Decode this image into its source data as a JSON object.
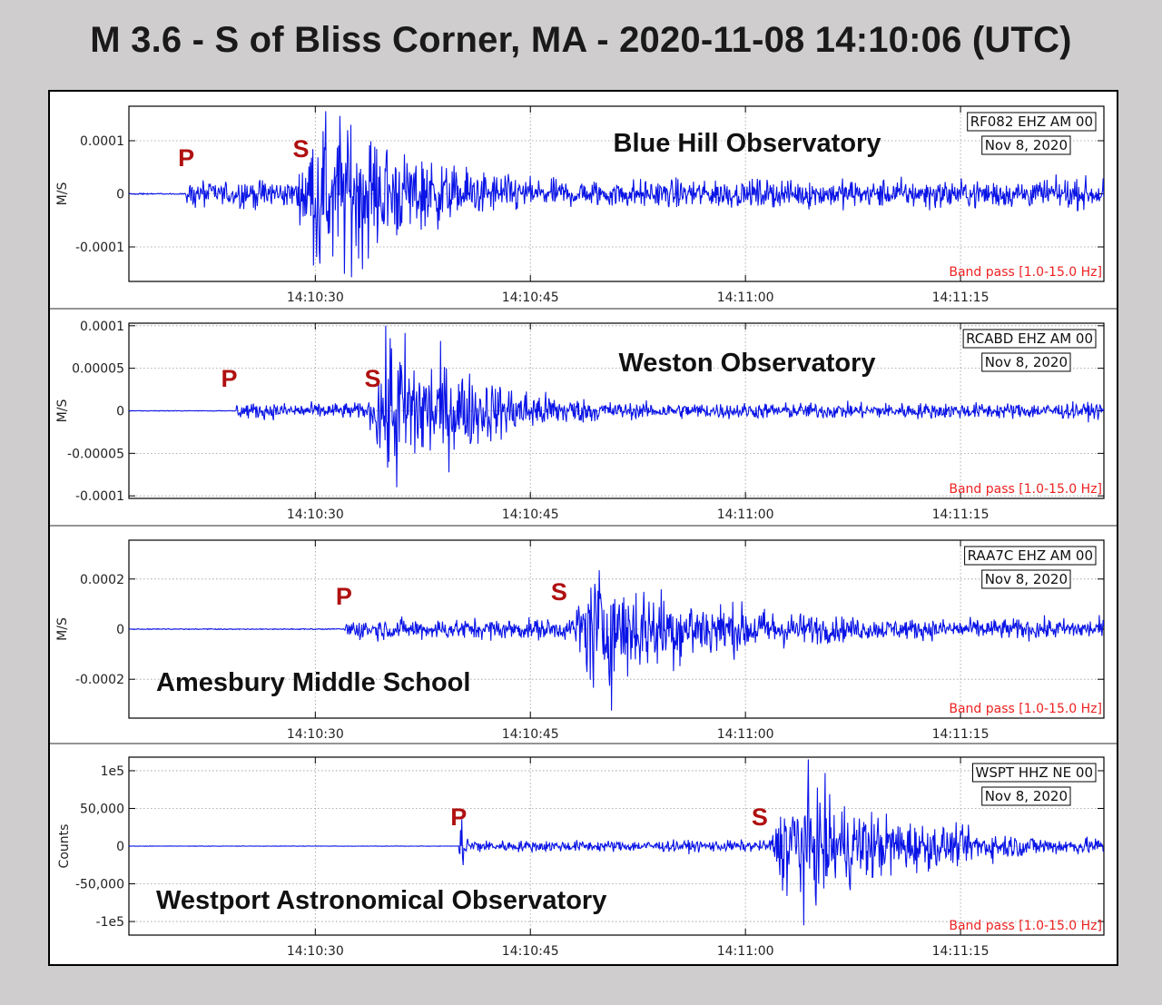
{
  "title": "M 3.6 - S of Bliss Corner, MA - 2020-11-08 14:10:06 (UTC)",
  "colors": {
    "trace": "#0a14e6",
    "phase_marker": "#b01010",
    "filter_text": "#ee2222",
    "grid": "#9a9a9a"
  },
  "chart_data": [
    {
      "type": "line",
      "station": "Blue Hill Observatory",
      "channel": "RF082 EHZ AM 00",
      "date": "Nov 8, 2020",
      "filter": "Band pass [1.0-15.0 Hz]",
      "ylabel": "M/S",
      "yticks": [
        0.0001,
        0,
        -0.0001
      ],
      "ytick_labels": [
        "0.0001",
        "0",
        "-0.0001"
      ],
      "ylim": [
        -0.000185,
        0.000165
      ],
      "xlim": [
        "14:10:17",
        "14:11:25"
      ],
      "xticks": [
        "14:10:30",
        "14:10:45",
        "14:11:00",
        "14:11:15"
      ],
      "phases": [
        {
          "label": "P",
          "time": "14:10:21"
        },
        {
          "label": "S",
          "time": "14:10:29"
        }
      ],
      "envelope": {
        "p_time": "14:10:21",
        "s_time": "14:10:30",
        "p_amp": 1.4e-05,
        "s_amp": 9.5e-05,
        "s_decay_s": 8,
        "coda_amp": 6e-06,
        "peak_max": 0.000118,
        "peak_min": -0.000135
      }
    },
    {
      "type": "line",
      "station": "Weston Observatory",
      "channel": "RCABD EHZ AM 00",
      "date": "Nov 8, 2020",
      "filter": "Band pass [1.0-15.0 Hz]",
      "ylabel": "M/S",
      "yticks": [
        0.0001,
        5e-05,
        0,
        -5e-05,
        -0.0001
      ],
      "ytick_labels": [
        "0.0001",
        "0.00005",
        "0",
        "-0.00005",
        "-0.0001"
      ],
      "ylim": [
        -0.000103,
        0.000103
      ],
      "xlim": [
        "14:10:17",
        "14:11:25"
      ],
      "xticks": [
        "14:10:30",
        "14:10:45",
        "14:11:00",
        "14:11:15"
      ],
      "phases": [
        {
          "label": "P",
          "time": "14:10:24"
        },
        {
          "label": "S",
          "time": "14:10:34"
        }
      ],
      "envelope": {
        "p_time": "14:10:24.5",
        "s_time": "14:10:35",
        "p_amp": 5e-06,
        "s_amp": 5.5e-05,
        "s_decay_s": 7,
        "coda_amp": 3.5e-06,
        "peak_max": 0.0001,
        "peak_min": -9e-05
      }
    },
    {
      "type": "line",
      "station": "Amesbury Middle School",
      "channel": "RAA7C EHZ AM 00",
      "date": "Nov 8, 2020",
      "filter": "Band pass [1.0-15.0 Hz]",
      "ylabel": "M/S",
      "yticks": [
        0.0002,
        0,
        -0.0002
      ],
      "ytick_labels": [
        "0.0002",
        "0",
        "-0.0002"
      ],
      "ylim": [
        -0.000355,
        0.000355
      ],
      "xlim": [
        "14:10:17",
        "14:11:25"
      ],
      "xticks": [
        "14:10:30",
        "14:10:45",
        "14:11:00",
        "14:11:15"
      ],
      "phases": [
        {
          "label": "P",
          "time": "14:10:32"
        },
        {
          "label": "S",
          "time": "14:10:47"
        }
      ],
      "envelope": {
        "p_time": "14:10:32",
        "s_time": "14:10:49",
        "p_amp": 2.2e-05,
        "s_amp": 0.000135,
        "s_decay_s": 11,
        "coda_amp": 1.8e-05,
        "peak_max": 0.000235,
        "peak_min": -0.000325
      }
    },
    {
      "type": "line",
      "station": "Westport Astronomical Observatory",
      "channel": "WSPT HHZ NE 00",
      "date": "Nov 8, 2020",
      "filter": "Band pass [1.0-15.0 Hz]",
      "ylabel": "Counts",
      "yticks": [
        100000,
        50000,
        0,
        -50000,
        -100000
      ],
      "ytick_labels": [
        "1e5",
        "50,000",
        "0",
        "-50,000",
        "-1e5"
      ],
      "ylim": [
        -118000,
        118000
      ],
      "xlim": [
        "14:10:17",
        "14:11:25"
      ],
      "xticks": [
        "14:10:30",
        "14:10:45",
        "14:11:00",
        "14:11:15"
      ],
      "phases": [
        {
          "label": "P",
          "time": "14:10:40"
        },
        {
          "label": "S",
          "time": "14:11:01"
        }
      ],
      "envelope": {
        "p_time": "14:10:40",
        "s_time": "14:11:03",
        "p_amp": 4000,
        "s_amp": 48000,
        "s_decay_s": 9,
        "coda_amp": 6000,
        "peak_max": 115000,
        "peak_min": -105000
      }
    }
  ]
}
